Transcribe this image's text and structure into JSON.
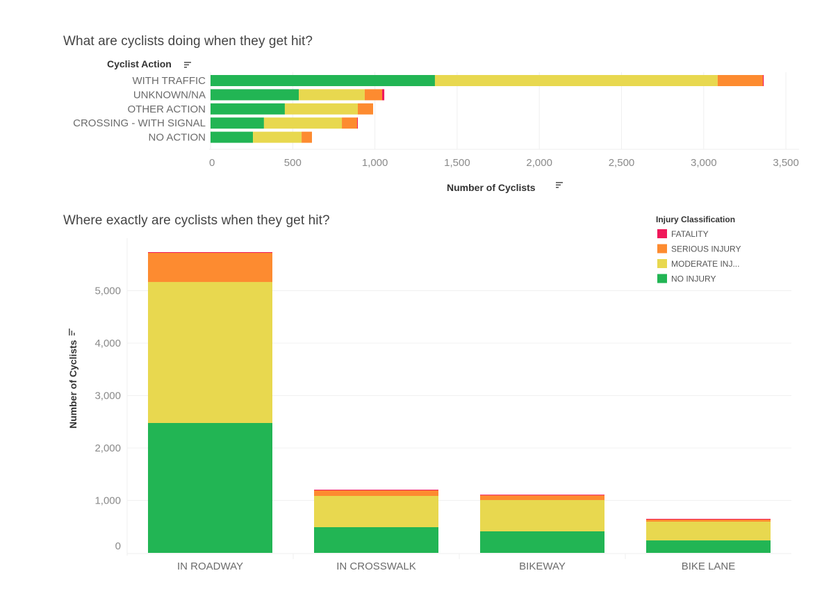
{
  "chart_data": [
    {
      "type": "bar",
      "orientation": "horizontal",
      "stacked": true,
      "title": "What are cyclists doing when they get hit?",
      "ylabel": "Cyclist Action",
      "xlabel": "Number of Cyclists",
      "xlim": [
        0,
        3600
      ],
      "xticks": [
        0,
        500,
        1000,
        1500,
        2000,
        2500,
        3000,
        3500
      ],
      "xtick_labels": [
        "0",
        "500",
        "1,000",
        "1,500",
        "2,000",
        "2,500",
        "3,000",
        "3,500"
      ],
      "grid": true,
      "categories": [
        "WITH TRAFFIC",
        "UNKNOWN/NA",
        "OTHER ACTION",
        "CROSSING - WITH SIGNAL",
        "NO ACTION"
      ],
      "series": [
        {
          "name": "NO INJURY",
          "values": [
            1365,
            537,
            452,
            325,
            258
          ]
        },
        {
          "name": "MODERATE INJURY",
          "values": [
            1720,
            401,
            444,
            474,
            296
          ]
        },
        {
          "name": "SERIOUS INJURY",
          "values": [
            275,
            106,
            93,
            93,
            63
          ]
        },
        {
          "name": "FATALITY",
          "values": [
            5,
            13,
            0,
            4,
            0
          ]
        }
      ]
    },
    {
      "type": "bar",
      "orientation": "vertical",
      "stacked": true,
      "title": "Where exactly are cyclists when they get hit?",
      "xlabel": "",
      "ylabel": "Number of Cyclists",
      "ylim": [
        0,
        5900
      ],
      "yticks": [
        0,
        1000,
        2000,
        3000,
        4000,
        5000
      ],
      "ytick_labels": [
        "0",
        "1,000",
        "2,000",
        "3,000",
        "4,000",
        "5,000"
      ],
      "grid": true,
      "legend_position": "top-right",
      "categories": [
        "IN ROADWAY",
        "IN CROSSWALK",
        "BIKEWAY",
        "BIKE LANE"
      ],
      "series": [
        {
          "name": "NO INJURY",
          "values": [
            2477,
            490,
            411,
            238
          ]
        },
        {
          "name": "MODERATE INJURY",
          "values": [
            2689,
            596,
            596,
            358
          ]
        },
        {
          "name": "SERIOUS INJURY",
          "values": [
            556,
            106,
            92,
            40
          ]
        },
        {
          "name": "FATALITY",
          "values": [
            13,
            13,
            11,
            13
          ]
        }
      ]
    }
  ],
  "legend": {
    "title": "Injury Classification",
    "items": [
      {
        "label": "FATALITY",
        "series": "FATALITY",
        "color": "#f0185a"
      },
      {
        "label": "SERIOUS INJURY",
        "series": "SERIOUS INJURY",
        "color": "#fd8b30"
      },
      {
        "label": "MODERATE INJ...",
        "series": "MODERATE INJURY",
        "color": "#e8d84f"
      },
      {
        "label": "NO INJURY",
        "series": "NO INJURY",
        "color": "#22b554"
      }
    ]
  },
  "colors": {
    "NO INJURY": "#22b554",
    "MODERATE INJURY": "#e8d84f",
    "SERIOUS INJURY": "#fd8b30",
    "FATALITY": "#f0185a"
  },
  "sort_icon": "sort-descending-icon"
}
